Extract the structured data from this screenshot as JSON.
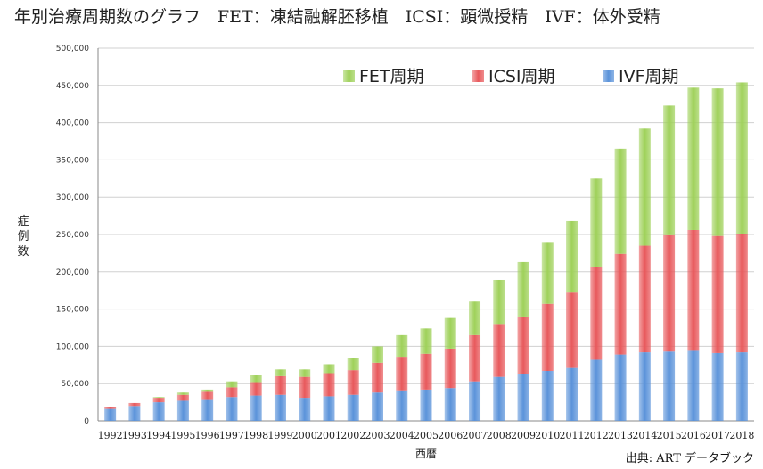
{
  "title": "年別治療周期数のグラフ　FET：凍結融解胚移植　ICSI：顕微授精　IVF：体外受精",
  "source": "出典: ART データブック",
  "colors": {
    "FET": "#9fd15a",
    "ICSI": "#e8595c",
    "IVF": "#5b93da",
    "grid": "#d0d0d0",
    "axis": "#888888"
  },
  "chart_data": {
    "type": "bar",
    "stacked": true,
    "xlabel": "西暦",
    "ylabel": "症例数",
    "ylim": [
      0,
      500000
    ],
    "yticks": [
      "0",
      "50,000",
      "100,000",
      "150,000",
      "200,000",
      "250,000",
      "300,000",
      "350,000",
      "400,000",
      "450,000",
      "500,000"
    ],
    "ytick_values": [
      0,
      50000,
      100000,
      150000,
      200000,
      250000,
      300000,
      350000,
      400000,
      450000,
      500000
    ],
    "grid": true,
    "legend_position": "top-right",
    "categories": [
      "1992",
      "1993",
      "1994",
      "1995",
      "1996",
      "1997",
      "1998",
      "1999",
      "2000",
      "2001",
      "2002",
      "2003",
      "2004",
      "2005",
      "2006",
      "2007",
      "2008",
      "2009",
      "2010",
      "2011",
      "2012",
      "2013",
      "2014",
      "2015",
      "2016",
      "2017",
      "2018"
    ],
    "series": [
      {
        "name": "IVF周期",
        "key": "IVF",
        "values": [
          16000,
          20000,
          25000,
          27000,
          28000,
          32000,
          34000,
          35000,
          31000,
          33000,
          35000,
          38000,
          41000,
          42000,
          44000,
          53000,
          59000,
          63000,
          67000,
          71000,
          82000,
          89000,
          92000,
          93000,
          94000,
          91000,
          92000
        ]
      },
      {
        "name": "ICSI周期",
        "key": "ICSI",
        "values": [
          2000,
          4000,
          6000,
          8000,
          11000,
          13000,
          18000,
          25000,
          28000,
          31000,
          33000,
          40000,
          45000,
          48000,
          53000,
          62000,
          71000,
          77000,
          90000,
          101000,
          124000,
          135000,
          143000,
          156000,
          162000,
          157000,
          159000
        ]
      },
      {
        "name": "FET周期",
        "key": "FET",
        "values": [
          0,
          0,
          1000,
          3000,
          3000,
          8000,
          9000,
          9000,
          10000,
          12000,
          16000,
          22000,
          29000,
          34000,
          41000,
          45000,
          59000,
          73000,
          83000,
          96000,
          119000,
          141000,
          157000,
          174000,
          191000,
          198000,
          203000
        ]
      }
    ],
    "legend_order": [
      "FET",
      "ICSI",
      "IVF"
    ]
  }
}
